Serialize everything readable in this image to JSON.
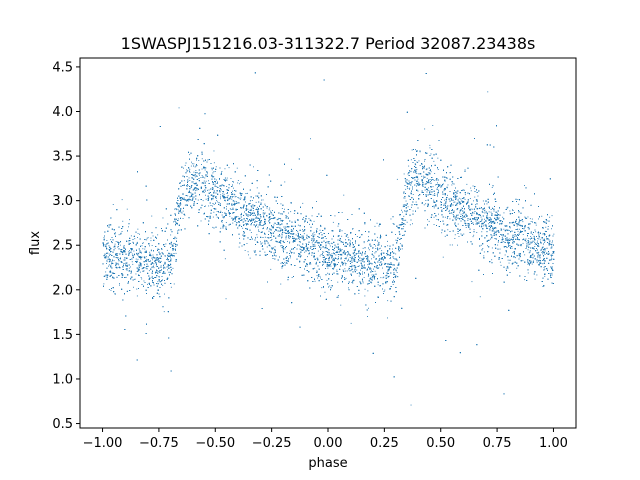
{
  "chart_data": {
    "type": "scatter",
    "title": "1SWASPJ151216.03-311322.7 Period 32087.23438s",
    "xlabel": "phase",
    "ylabel": "flux",
    "xlim": [
      -1.1,
      1.1
    ],
    "ylim": [
      0.45,
      4.6
    ],
    "xticks": [
      -1.0,
      -0.75,
      -0.5,
      -0.25,
      0.0,
      0.25,
      0.5,
      0.75,
      1.0
    ],
    "xtick_labels": [
      "−1.00",
      "−0.75",
      "−0.50",
      "−0.25",
      "0.00",
      "0.25",
      "0.50",
      "0.75",
      "1.00"
    ],
    "yticks": [
      0.5,
      1.0,
      1.5,
      2.0,
      2.5,
      3.0,
      3.5,
      4.0,
      4.5
    ],
    "ytick_labels": [
      "0.5",
      "1.0",
      "1.5",
      "2.0",
      "2.5",
      "3.0",
      "3.5",
      "4.0",
      "4.5"
    ],
    "grid": false,
    "marker_color": "#1f77b4",
    "series": [
      {
        "phase_range": [
          -1.0,
          1.0
        ],
        "period_in_phase": 1.0,
        "curve_points": [
          {
            "phase": 0.0,
            "flux": 2.4
          },
          {
            "phase": 0.1,
            "flux": 2.35
          },
          {
            "phase": 0.2,
            "flux": 2.3
          },
          {
            "phase": 0.25,
            "flux": 2.28
          },
          {
            "phase": 0.3,
            "flux": 2.32
          },
          {
            "phase": 0.35,
            "flux": 3.1
          },
          {
            "phase": 0.4,
            "flux": 3.25
          },
          {
            "phase": 0.45,
            "flux": 3.2
          },
          {
            "phase": 0.5,
            "flux": 3.05
          },
          {
            "phase": 0.6,
            "flux": 2.9
          },
          {
            "phase": 0.7,
            "flux": 2.75
          },
          {
            "phase": 0.8,
            "flux": 2.62
          },
          {
            "phase": 0.9,
            "flux": 2.5
          },
          {
            "phase": 1.0,
            "flux": 2.4
          }
        ],
        "scatter_sigma": 0.18,
        "point_count": 14000
      }
    ]
  }
}
